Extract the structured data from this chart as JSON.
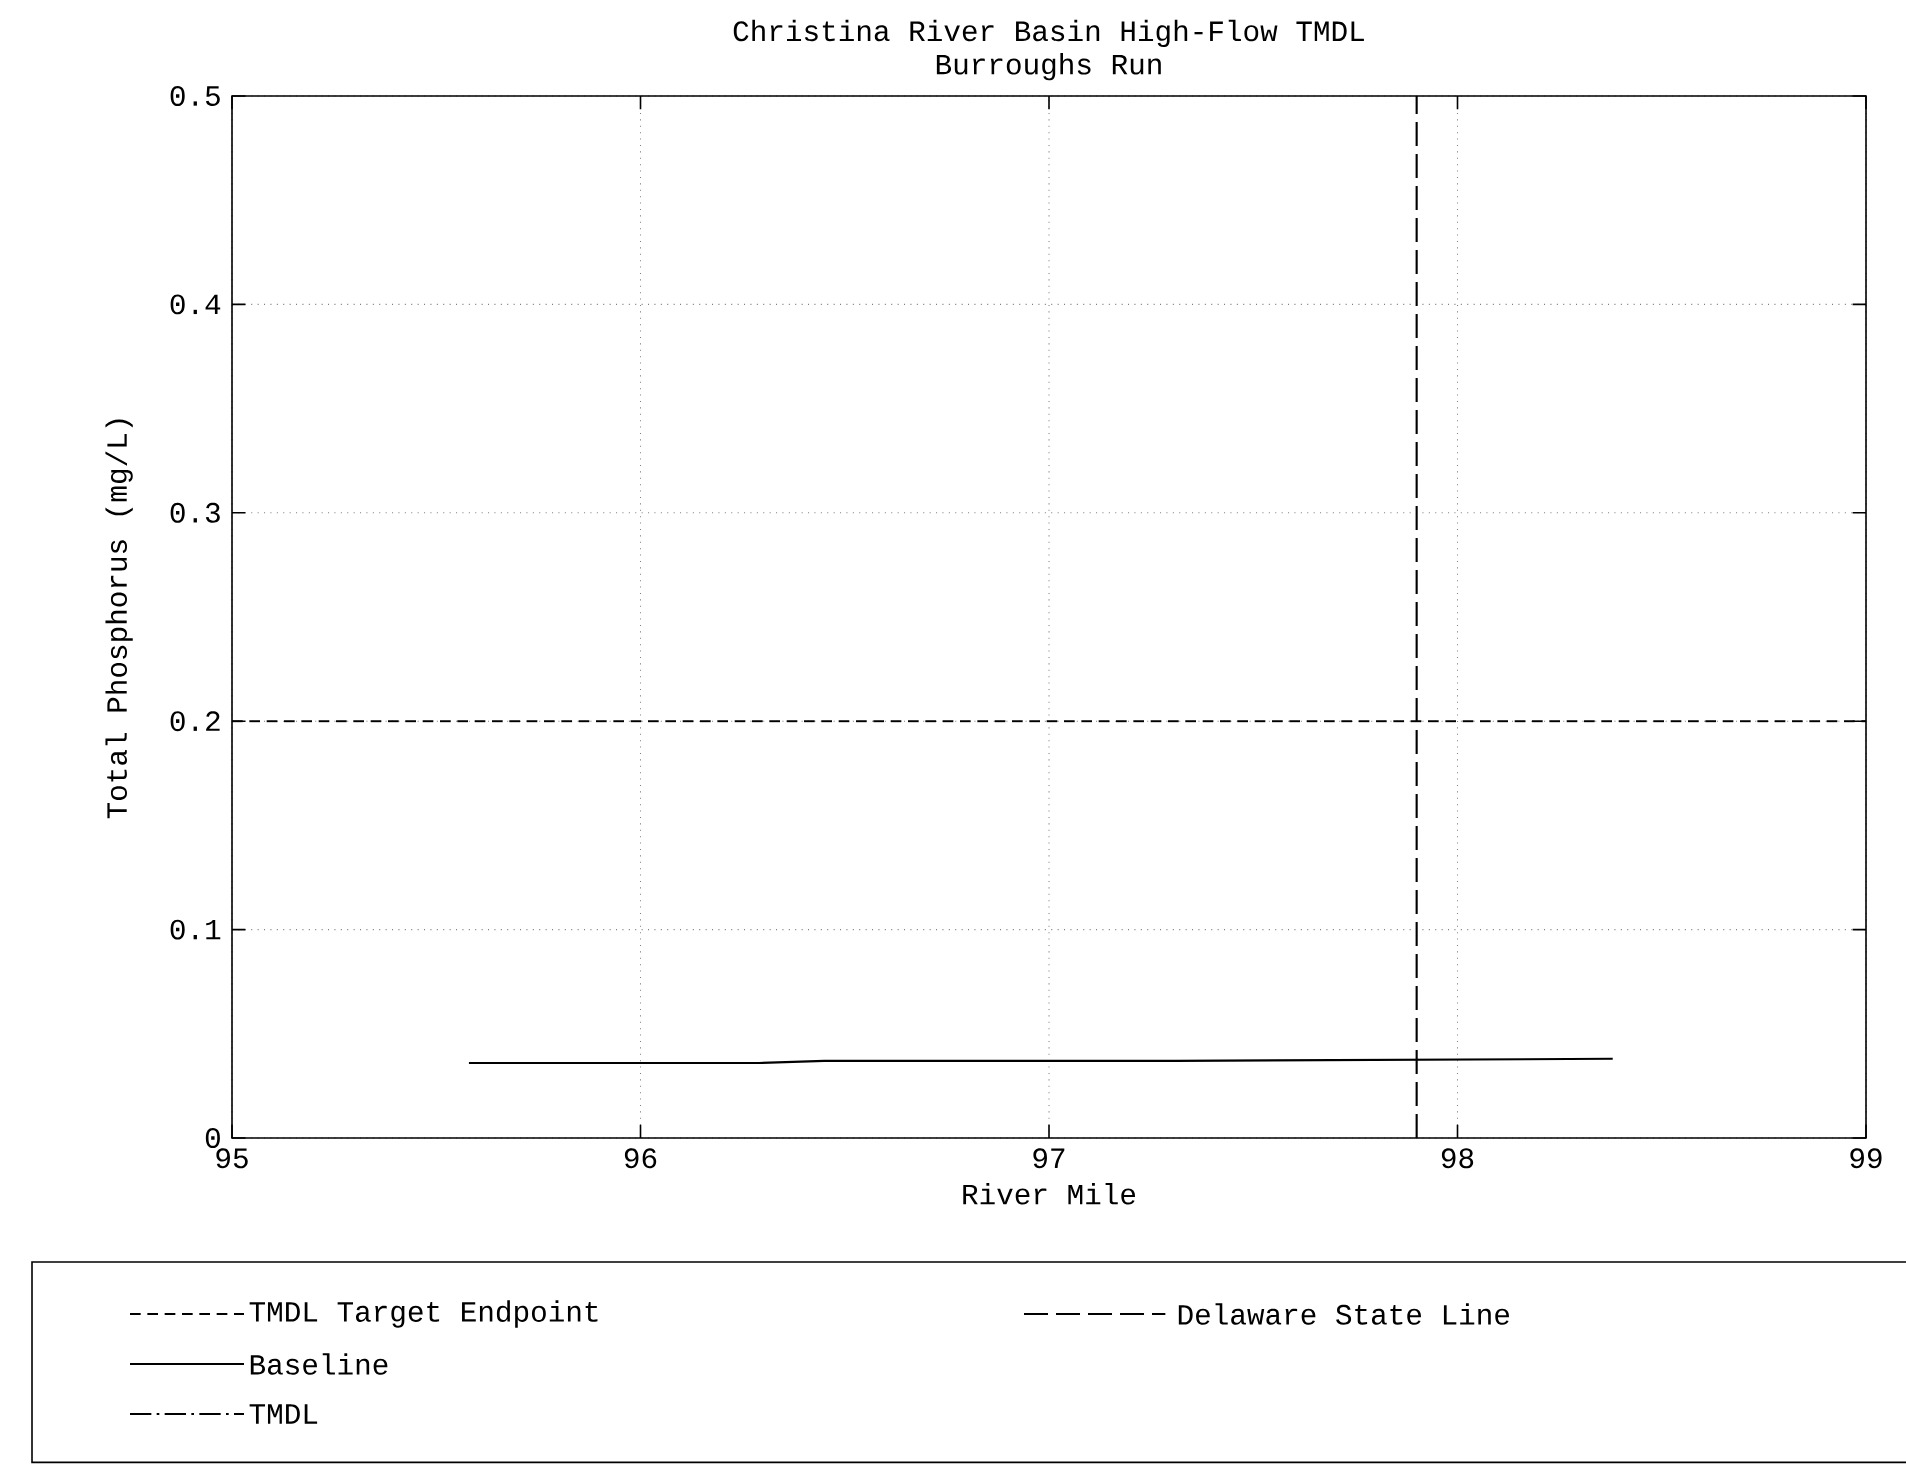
{
  "chart_data": {
    "type": "line",
    "title": "Christina River Basin High-Flow TMDL",
    "subtitle": "Burroughs Run",
    "xlabel": "River Mile",
    "ylabel": "Total Phosphorus (mg/L)",
    "xlim": [
      95,
      99
    ],
    "ylim": [
      0,
      0.5
    ],
    "xticks": [
      95,
      96,
      97,
      98,
      99
    ],
    "yticks": [
      0,
      0.1,
      0.2,
      0.3,
      0.4,
      0.5
    ],
    "grid": true,
    "legend": "bottom",
    "x": [
      95.58,
      96.29,
      96.45,
      97.31,
      98.38
    ],
    "series": [
      {
        "name": "Baseline",
        "color": "#000000",
        "line_style": "solid",
        "values": [
          0.036,
          0.036,
          0.037,
          0.037,
          0.038
        ]
      },
      {
        "name": "TMDL",
        "color": "#000000",
        "line_style": "dashed",
        "values": [
          null,
          null,
          null,
          null,
          null
        ]
      }
    ],
    "ref_lines": [
      {
        "axis": "y",
        "value": 0.2,
        "label": "TMDL Target Endpoint",
        "color": "#000000",
        "line_style": "dashed"
      },
      {
        "axis": "x",
        "value": 97.9,
        "label": "Delaware State Line",
        "color": "#000000",
        "line_style": "dashed"
      }
    ]
  }
}
